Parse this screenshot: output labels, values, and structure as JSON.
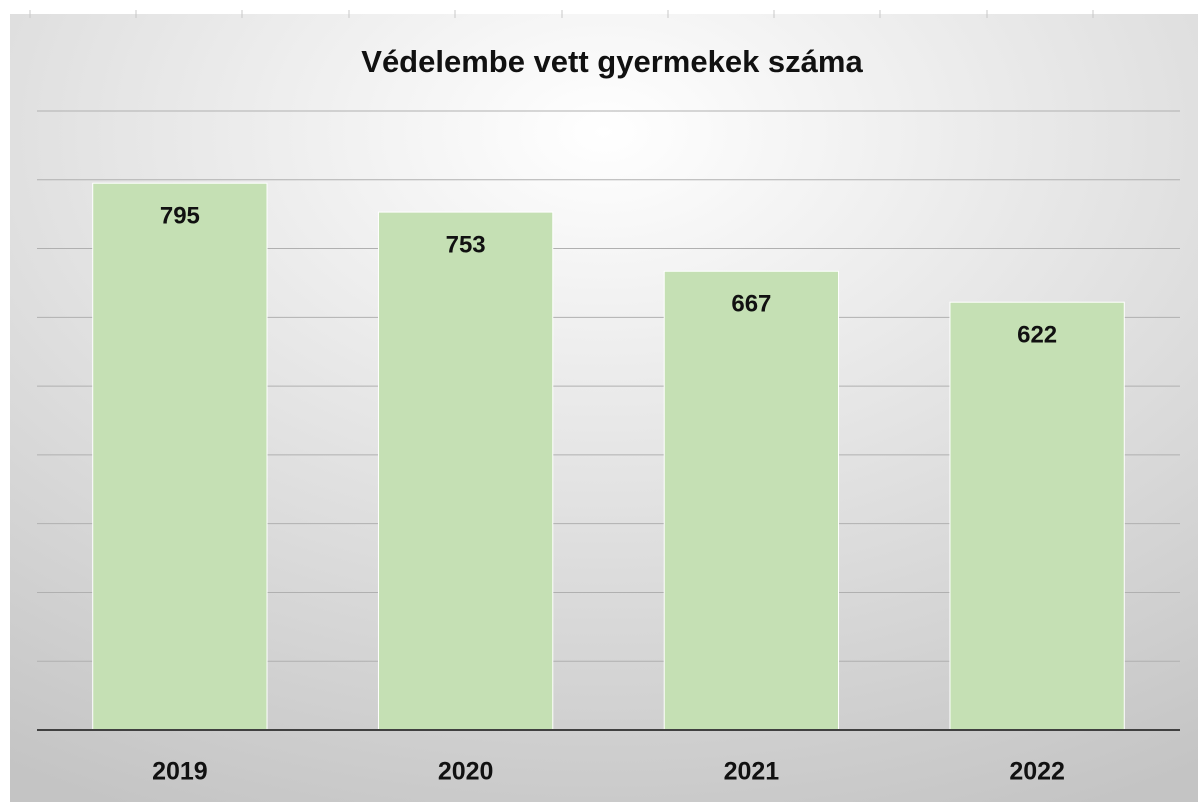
{
  "chart_data": {
    "type": "bar",
    "title": "Védelembe vett gyermekek száma",
    "categories": [
      "2019",
      "2020",
      "2021",
      "2022"
    ],
    "values": [
      795,
      753,
      667,
      622
    ],
    "color": "#c5e0b4",
    "ylim": [
      0,
      900
    ],
    "yticks": [
      0,
      100,
      200,
      300,
      400,
      500,
      600,
      700,
      800,
      900
    ],
    "grid": true
  }
}
